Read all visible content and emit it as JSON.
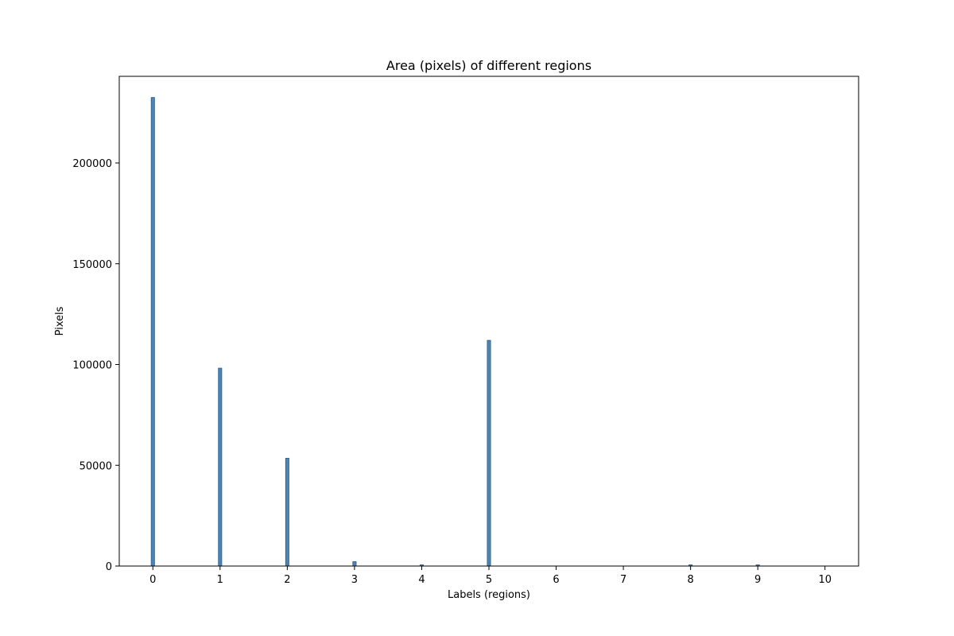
{
  "chart_data": {
    "type": "bar",
    "title": "Area (pixels) of different regions",
    "xlabel": "Labels (regions)",
    "ylabel": "Pixels",
    "xlim": [
      -0.5,
      10.5
    ],
    "ylim": [
      0,
      243000
    ],
    "xticks": [
      0,
      1,
      2,
      3,
      4,
      5,
      6,
      7,
      8,
      9,
      10
    ],
    "yticks": [
      0,
      50000,
      100000,
      150000,
      200000
    ],
    "bar_width": 0.05,
    "grid": false,
    "legend": "none",
    "colors": {
      "bar_fill": "#4c84b3",
      "bar_edge": "#2f5f86",
      "axis": "#000000",
      "background": "#ffffff"
    },
    "series": [
      {
        "x": [
          0,
          1,
          2,
          3,
          4,
          5,
          6,
          7,
          8,
          9
        ],
        "values": [
          232500,
          98200,
          53500,
          2200,
          600,
          112000,
          0,
          0,
          600,
          600
        ]
      }
    ]
  }
}
